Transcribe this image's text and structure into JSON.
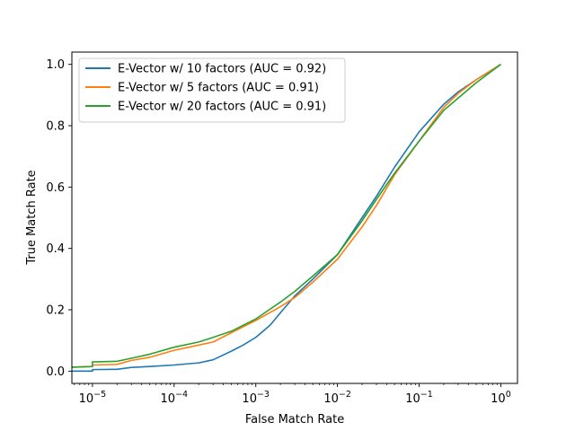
{
  "chart_data": {
    "type": "line",
    "title": "",
    "xlabel": "False Match Rate",
    "ylabel": "True Match Rate",
    "xscale": "log",
    "xlim": [
      5.6e-06,
      1.6
    ],
    "ylim": [
      -0.04,
      1.04
    ],
    "grid": false,
    "legend_position": "upper-left",
    "x_ticks": [
      {
        "value": 1e-05,
        "base": "10",
        "exp": "−5"
      },
      {
        "value": 0.0001,
        "base": "10",
        "exp": "−4"
      },
      {
        "value": 0.001,
        "base": "10",
        "exp": "−3"
      },
      {
        "value": 0.01,
        "base": "10",
        "exp": "−2"
      },
      {
        "value": 0.1,
        "base": "10",
        "exp": "−1"
      },
      {
        "value": 1,
        "base": "10",
        "exp": "0"
      }
    ],
    "y_ticks": [
      {
        "value": 0.0,
        "label": "0.0"
      },
      {
        "value": 0.2,
        "label": "0.2"
      },
      {
        "value": 0.4,
        "label": "0.4"
      },
      {
        "value": 0.6,
        "label": "0.6"
      },
      {
        "value": 0.8,
        "label": "0.8"
      },
      {
        "value": 1.0,
        "label": "1.0"
      }
    ],
    "series": [
      {
        "name": "E-Vector w/ 10 factors (AUC = 0.92)",
        "color": "#1f77b4",
        "points": [
          [
            5.6e-06,
            0.0
          ],
          [
            1e-05,
            0.0
          ],
          [
            1e-05,
            0.005
          ],
          [
            2e-05,
            0.006
          ],
          [
            3e-05,
            0.012
          ],
          [
            5e-05,
            0.015
          ],
          [
            0.0001,
            0.02
          ],
          [
            0.0002,
            0.027
          ],
          [
            0.0003,
            0.037
          ],
          [
            0.0005,
            0.065
          ],
          [
            0.0007,
            0.085
          ],
          [
            0.001,
            0.11
          ],
          [
            0.0015,
            0.15
          ],
          [
            0.002,
            0.19
          ],
          [
            0.003,
            0.245
          ],
          [
            0.005,
            0.3
          ],
          [
            0.01,
            0.38
          ],
          [
            0.02,
            0.5
          ],
          [
            0.03,
            0.57
          ],
          [
            0.05,
            0.665
          ],
          [
            0.1,
            0.78
          ],
          [
            0.2,
            0.87
          ],
          [
            0.3,
            0.91
          ],
          [
            0.5,
            0.95
          ],
          [
            1.0,
            1.0
          ]
        ]
      },
      {
        "name": "E-Vector w/ 5 factors (AUC = 0.91)",
        "color": "#ff7f0e",
        "points": [
          [
            5.6e-06,
            0.013
          ],
          [
            1e-05,
            0.015
          ],
          [
            1e-05,
            0.02
          ],
          [
            2e-05,
            0.022
          ],
          [
            3e-05,
            0.035
          ],
          [
            5e-05,
            0.045
          ],
          [
            0.0001,
            0.068
          ],
          [
            0.0002,
            0.085
          ],
          [
            0.0003,
            0.095
          ],
          [
            0.0005,
            0.125
          ],
          [
            0.001,
            0.165
          ],
          [
            0.002,
            0.21
          ],
          [
            0.003,
            0.24
          ],
          [
            0.005,
            0.29
          ],
          [
            0.01,
            0.365
          ],
          [
            0.02,
            0.47
          ],
          [
            0.03,
            0.54
          ],
          [
            0.05,
            0.64
          ],
          [
            0.1,
            0.75
          ],
          [
            0.2,
            0.86
          ],
          [
            0.3,
            0.905
          ],
          [
            0.5,
            0.95
          ],
          [
            1.0,
            1.0
          ]
        ]
      },
      {
        "name": "E-Vector w/ 20 factors (AUC = 0.91)",
        "color": "#2ca02c",
        "points": [
          [
            5.6e-06,
            0.013
          ],
          [
            1e-05,
            0.015
          ],
          [
            1e-05,
            0.03
          ],
          [
            2e-05,
            0.032
          ],
          [
            3e-05,
            0.042
          ],
          [
            5e-05,
            0.055
          ],
          [
            0.0001,
            0.078
          ],
          [
            0.0002,
            0.095
          ],
          [
            0.0003,
            0.11
          ],
          [
            0.0005,
            0.13
          ],
          [
            0.001,
            0.17
          ],
          [
            0.002,
            0.225
          ],
          [
            0.003,
            0.26
          ],
          [
            0.005,
            0.31
          ],
          [
            0.01,
            0.38
          ],
          [
            0.02,
            0.49
          ],
          [
            0.03,
            0.56
          ],
          [
            0.05,
            0.645
          ],
          [
            0.1,
            0.75
          ],
          [
            0.2,
            0.85
          ],
          [
            0.3,
            0.89
          ],
          [
            0.5,
            0.94
          ],
          [
            1.0,
            1.0
          ]
        ]
      }
    ]
  }
}
